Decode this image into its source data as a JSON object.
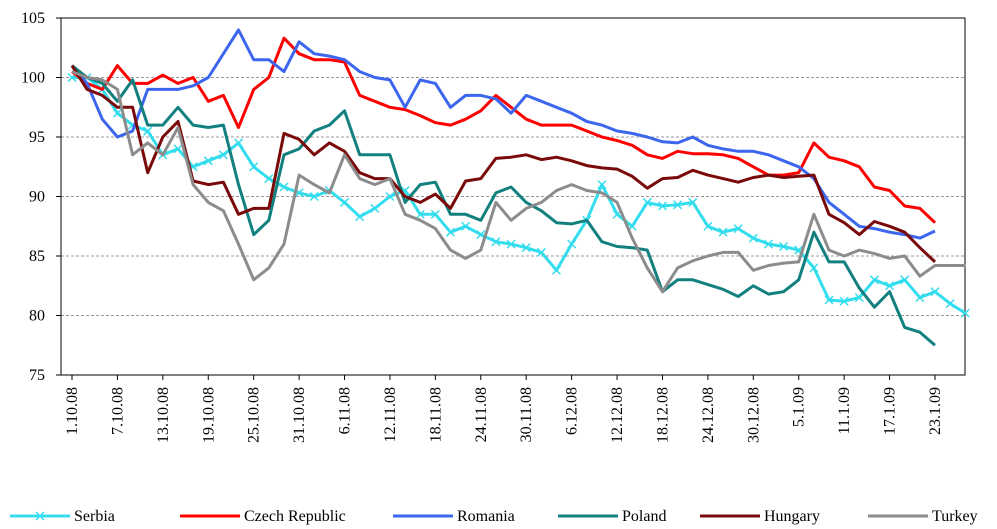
{
  "chart_data": {
    "type": "line",
    "categories": [
      "1.10.08",
      null,
      null,
      "7.10.08",
      null,
      null,
      "13.10.08",
      null,
      null,
      "19.10.08",
      null,
      null,
      "25.10.08",
      null,
      null,
      "31.10.08",
      null,
      null,
      "6.11.08",
      null,
      null,
      "12.11.08",
      null,
      null,
      "18.11.08",
      null,
      null,
      "24.11.08",
      null,
      null,
      "30.11.08",
      null,
      null,
      "6.12.08",
      null,
      null,
      "12.12.08",
      null,
      null,
      "18.12.08",
      null,
      null,
      "24.12.08",
      null,
      null,
      "30.12.08",
      null,
      null,
      "5.1.09",
      null,
      null,
      "11.1.09",
      null,
      null,
      "17.1.09",
      null,
      null,
      "23.1.09",
      null,
      null
    ],
    "series": [
      {
        "name": "Serbia",
        "color": "#33ddee",
        "marker": "x",
        "values": [
          100,
          100,
          99,
          97,
          96,
          95.5,
          93.5,
          94,
          92.5,
          93,
          93.5,
          94.5,
          92.5,
          91.5,
          90.8,
          90.3,
          90,
          90.5,
          89.5,
          88.3,
          89,
          90,
          90.5,
          88.5,
          88.5,
          87,
          87.5,
          86.8,
          86.2,
          86,
          85.7,
          85.3,
          83.8,
          86,
          88,
          91,
          88.5,
          87.5,
          89.5,
          89.2,
          89.3,
          89.5,
          87.5,
          87,
          87.3,
          86.5,
          86,
          85.8,
          85.5,
          84,
          81.3,
          81.2,
          81.5,
          83,
          82.5,
          83,
          81.5,
          82,
          81,
          80.2
        ]
      },
      {
        "name": "Czech Republic",
        "color": "#ff0000",
        "values": [
          100.5,
          99.5,
          99,
          101,
          99.5,
          99.5,
          100.2,
          99.5,
          100,
          98,
          98.5,
          95.8,
          99,
          100,
          103.3,
          102,
          101.5,
          101.5,
          101.3,
          98.5,
          98,
          97.5,
          97.3,
          96.8,
          96.2,
          96,
          96.5,
          97.2,
          98.5,
          97.5,
          96.5,
          96,
          96,
          96,
          95.5,
          95,
          94.7,
          94.3,
          93.5,
          93.2,
          93.8,
          93.6,
          93.6,
          93.5,
          93.2,
          92.5,
          91.8,
          91.8,
          92,
          94.5,
          93.3,
          93,
          92.5,
          90.8,
          90.5,
          89.2,
          89,
          87.8,
          null,
          null
        ]
      },
      {
        "name": "Romania",
        "color": "#3d66ee",
        "values": [
          101,
          99.5,
          96.5,
          95,
          95.5,
          99,
          99,
          99,
          99.3,
          100,
          102,
          104,
          101.5,
          101.5,
          100.5,
          103,
          102,
          101.8,
          101.5,
          100.5,
          100,
          99.8,
          97.5,
          99.8,
          99.5,
          97.5,
          98.5,
          98.5,
          98.2,
          97,
          98.5,
          98,
          97.5,
          97,
          96.3,
          96,
          95.5,
          95.3,
          95,
          94.6,
          94.5,
          95,
          94.3,
          94,
          93.8,
          93.8,
          93.5,
          93,
          92.5,
          91.5,
          89.5,
          88.5,
          87.5,
          87.3,
          87,
          86.8,
          86.5,
          87.1,
          null,
          null
        ]
      },
      {
        "name": "Poland",
        "color": "#138080",
        "values": [
          101,
          100,
          99.5,
          98,
          99.8,
          96,
          96,
          97.5,
          96,
          95.8,
          96,
          91,
          86.8,
          88,
          93.5,
          94,
          95.5,
          96,
          97.2,
          93.5,
          93.5,
          93.5,
          89.5,
          91,
          91.2,
          88.5,
          88.5,
          88,
          90.3,
          90.8,
          89.5,
          88.8,
          87.8,
          87.7,
          88,
          86.2,
          85.8,
          85.7,
          85.5,
          82,
          83,
          83,
          82.6,
          82.2,
          81.6,
          82.5,
          81.8,
          82,
          83,
          87,
          84.5,
          84.5,
          82.3,
          80.7,
          82,
          79,
          78.6,
          77.5,
          null,
          null
        ]
      },
      {
        "name": "Hungary",
        "color": "#7a0a0a",
        "values": [
          101,
          99,
          98.5,
          97.5,
          97.5,
          92,
          95,
          96.3,
          91.3,
          91,
          91.2,
          88.5,
          89,
          89,
          95.3,
          94.8,
          93.5,
          94.5,
          93.8,
          92,
          91.5,
          91.5,
          90,
          89.5,
          90.2,
          89,
          91.3,
          91.5,
          93.2,
          93.3,
          93.5,
          93.1,
          93.3,
          93,
          92.6,
          92.4,
          92.3,
          91.7,
          90.7,
          91.5,
          91.6,
          92.2,
          91.8,
          91.5,
          91.2,
          91.6,
          91.8,
          91.6,
          91.7,
          91.8,
          88.5,
          87.8,
          86.8,
          87.9,
          87.5,
          87,
          85.7,
          84.5,
          null,
          null
        ]
      },
      {
        "name": "Turkey",
        "color": "#8c8c8c",
        "values": [
          100.5,
          100,
          99.8,
          99,
          93.5,
          94.5,
          93.5,
          95.8,
          91,
          89.5,
          88.8,
          86,
          83,
          84,
          86,
          91.8,
          91,
          90.3,
          93.5,
          91.5,
          91,
          91.5,
          88.5,
          88,
          87.3,
          85.5,
          84.8,
          85.5,
          89.5,
          88,
          89,
          89.5,
          90.5,
          91,
          90.5,
          90.3,
          89.5,
          86.5,
          84,
          82,
          84,
          84.6,
          85,
          85.3,
          85.3,
          83.8,
          84.2,
          84.4,
          84.5,
          88.5,
          85.5,
          85,
          85.5,
          85.2,
          84.8,
          85,
          83.3,
          84.2,
          84.2,
          84.2
        ]
      }
    ],
    "ylim": [
      75,
      105
    ],
    "yticks": [
      75,
      80,
      85,
      90,
      95,
      100,
      105
    ],
    "grid": true,
    "legend": "bottom"
  }
}
